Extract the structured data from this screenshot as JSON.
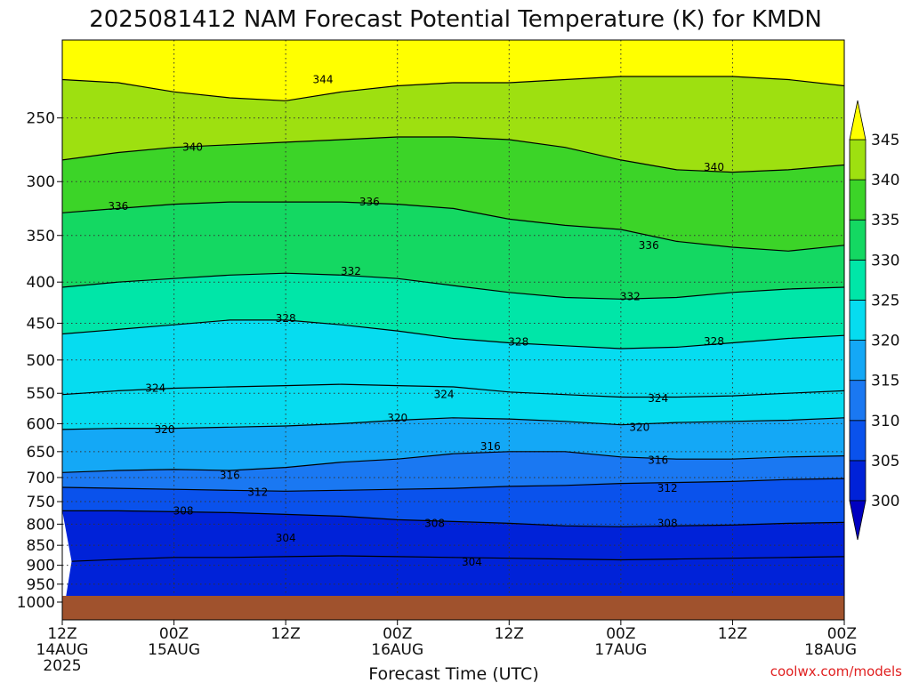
{
  "chart_data": {
    "type": "heatmap",
    "title": "2025081412 NAM Forecast Potential Temperature (K) for KMDN",
    "xlabel": "Forecast Time (UTC)",
    "ylabel": "",
    "y_axis": {
      "scale": "log-pressure",
      "range_hPa": [
        1000,
        200
      ],
      "ticks": [
        250,
        300,
        350,
        400,
        450,
        500,
        550,
        600,
        650,
        700,
        750,
        800,
        850,
        900,
        950,
        1000
      ]
    },
    "x_axis": {
      "range_hours": [
        0,
        84
      ],
      "ticks": [
        {
          "h": 0,
          "line1": "12Z",
          "line2": "14AUG",
          "line3": "2025"
        },
        {
          "h": 12,
          "line1": "00Z",
          "line2": "15AUG",
          "line3": ""
        },
        {
          "h": 24,
          "line1": "12Z",
          "line2": "",
          "line3": ""
        },
        {
          "h": 36,
          "line1": "00Z",
          "line2": "16AUG",
          "line3": ""
        },
        {
          "h": 48,
          "line1": "12Z",
          "line2": "",
          "line3": ""
        },
        {
          "h": 60,
          "line1": "00Z",
          "line2": "17AUG",
          "line3": ""
        },
        {
          "h": 72,
          "line1": "12Z",
          "line2": "",
          "line3": ""
        },
        {
          "h": 84,
          "line1": "00Z",
          "line2": "18AUG",
          "line3": ""
        }
      ]
    },
    "grid": "dotted",
    "colorbar": {
      "placement": "right",
      "levels": [
        300,
        305,
        310,
        315,
        320,
        325,
        330,
        335,
        340,
        345
      ],
      "colors": [
        "#0022d8",
        "#0a52ec",
        "#1a78f2",
        "#14a8f6",
        "#06dcf0",
        "#00e6a8",
        "#14d862",
        "#3cd428",
        "#9ee010",
        "#ffff18"
      ],
      "under_color": "#0000c0",
      "over_color": "#ffff00"
    },
    "surface_color": "#a0522d",
    "contours": [
      {
        "value": 304,
        "points": [
          [
            1,
            890
          ],
          [
            6,
            885
          ],
          [
            12,
            880
          ],
          [
            18,
            880
          ],
          [
            24,
            878
          ],
          [
            30,
            876
          ],
          [
            36,
            878
          ],
          [
            42,
            880
          ],
          [
            48,
            882
          ],
          [
            54,
            884
          ],
          [
            60,
            886
          ],
          [
            66,
            884
          ],
          [
            72,
            882
          ],
          [
            78,
            880
          ],
          [
            84,
            878
          ]
        ],
        "labels": [
          [
            24,
            832
          ],
          [
            44,
            892
          ]
        ]
      },
      {
        "value": 308,
        "points": [
          [
            0,
            770
          ],
          [
            6,
            770
          ],
          [
            12,
            772
          ],
          [
            18,
            774
          ],
          [
            24,
            778
          ],
          [
            30,
            782
          ],
          [
            36,
            790
          ],
          [
            42,
            794
          ],
          [
            48,
            798
          ],
          [
            54,
            804
          ],
          [
            60,
            806
          ],
          [
            66,
            804
          ],
          [
            72,
            802
          ],
          [
            78,
            798
          ],
          [
            84,
            796
          ]
        ],
        "labels": [
          [
            13,
            770
          ],
          [
            40,
            798
          ],
          [
            65,
            798
          ]
        ]
      },
      {
        "value": 312,
        "points": [
          [
            0,
            720
          ],
          [
            6,
            722
          ],
          [
            12,
            724
          ],
          [
            18,
            726
          ],
          [
            24,
            728
          ],
          [
            30,
            726
          ],
          [
            36,
            724
          ],
          [
            42,
            722
          ],
          [
            48,
            718
          ],
          [
            54,
            716
          ],
          [
            60,
            712
          ],
          [
            66,
            710
          ],
          [
            72,
            708
          ],
          [
            78,
            704
          ],
          [
            84,
            702
          ]
        ],
        "labels": [
          [
            21,
            730
          ],
          [
            65,
            722
          ]
        ]
      },
      {
        "value": 316,
        "points": [
          [
            0,
            690
          ],
          [
            6,
            686
          ],
          [
            12,
            684
          ],
          [
            18,
            686
          ],
          [
            24,
            680
          ],
          [
            30,
            670
          ],
          [
            36,
            664
          ],
          [
            42,
            654
          ],
          [
            48,
            650
          ],
          [
            54,
            650
          ],
          [
            60,
            660
          ],
          [
            66,
            664
          ],
          [
            72,
            664
          ],
          [
            78,
            660
          ],
          [
            84,
            658
          ]
        ],
        "labels": [
          [
            18,
            696
          ],
          [
            46,
            640
          ],
          [
            64,
            666
          ]
        ]
      },
      {
        "value": 320,
        "points": [
          [
            0,
            610
          ],
          [
            6,
            608
          ],
          [
            12,
            608
          ],
          [
            18,
            606
          ],
          [
            24,
            604
          ],
          [
            30,
            600
          ],
          [
            36,
            594
          ],
          [
            42,
            590
          ],
          [
            48,
            592
          ],
          [
            54,
            596
          ],
          [
            60,
            602
          ],
          [
            66,
            598
          ],
          [
            72,
            596
          ],
          [
            78,
            594
          ],
          [
            84,
            590
          ]
        ],
        "labels": [
          [
            11,
            610
          ],
          [
            36,
            590
          ],
          [
            62,
            606
          ]
        ]
      },
      {
        "value": 324,
        "points": [
          [
            0,
            552
          ],
          [
            6,
            546
          ],
          [
            12,
            542
          ],
          [
            18,
            540
          ],
          [
            24,
            538
          ],
          [
            30,
            536
          ],
          [
            36,
            538
          ],
          [
            42,
            540
          ],
          [
            48,
            548
          ],
          [
            54,
            552
          ],
          [
            60,
            556
          ],
          [
            66,
            556
          ],
          [
            72,
            554
          ],
          [
            78,
            550
          ],
          [
            84,
            546
          ]
        ],
        "labels": [
          [
            10,
            542
          ],
          [
            41,
            552
          ],
          [
            64,
            558
          ]
        ]
      },
      {
        "value": 328,
        "points": [
          [
            0,
            464
          ],
          [
            6,
            458
          ],
          [
            12,
            452
          ],
          [
            18,
            446
          ],
          [
            24,
            446
          ],
          [
            30,
            452
          ],
          [
            36,
            460
          ],
          [
            42,
            470
          ],
          [
            48,
            476
          ],
          [
            54,
            480
          ],
          [
            60,
            484
          ],
          [
            66,
            482
          ],
          [
            72,
            476
          ],
          [
            78,
            470
          ],
          [
            84,
            466
          ]
        ],
        "labels": [
          [
            24,
            444
          ],
          [
            49,
            475
          ],
          [
            70,
            474
          ]
        ]
      },
      {
        "value": 332,
        "points": [
          [
            0,
            406
          ],
          [
            6,
            400
          ],
          [
            12,
            396
          ],
          [
            18,
            392
          ],
          [
            24,
            390
          ],
          [
            30,
            392
          ],
          [
            36,
            396
          ],
          [
            42,
            404
          ],
          [
            48,
            412
          ],
          [
            54,
            418
          ],
          [
            60,
            420
          ],
          [
            66,
            418
          ],
          [
            72,
            412
          ],
          [
            78,
            408
          ],
          [
            84,
            406
          ]
        ],
        "labels": [
          [
            31,
            388
          ],
          [
            61,
            417
          ]
        ]
      },
      {
        "value": 336,
        "points": [
          [
            0,
            328
          ],
          [
            6,
            324
          ],
          [
            12,
            320
          ],
          [
            18,
            318
          ],
          [
            24,
            318
          ],
          [
            30,
            318
          ],
          [
            36,
            320
          ],
          [
            42,
            324
          ],
          [
            48,
            334
          ],
          [
            54,
            340
          ],
          [
            60,
            344
          ],
          [
            66,
            356
          ],
          [
            72,
            362
          ],
          [
            78,
            366
          ],
          [
            84,
            360
          ]
        ],
        "labels": [
          [
            6,
            322
          ],
          [
            33,
            318
          ],
          [
            63,
            360
          ]
        ]
      },
      {
        "value": 340,
        "points": [
          [
            0,
            282
          ],
          [
            6,
            276
          ],
          [
            12,
            272
          ],
          [
            18,
            270
          ],
          [
            24,
            268
          ],
          [
            30,
            266
          ],
          [
            36,
            264
          ],
          [
            42,
            264
          ],
          [
            48,
            266
          ],
          [
            54,
            272
          ],
          [
            60,
            282
          ],
          [
            66,
            290
          ],
          [
            72,
            292
          ],
          [
            78,
            290
          ],
          [
            84,
            286
          ]
        ],
        "labels": [
          [
            14,
            272
          ],
          [
            70,
            288
          ]
        ]
      },
      {
        "value": 344,
        "points": [
          [
            0,
            224
          ],
          [
            6,
            226
          ],
          [
            12,
            232
          ],
          [
            18,
            236
          ],
          [
            24,
            238
          ],
          [
            30,
            232
          ],
          [
            36,
            228
          ],
          [
            42,
            226
          ],
          [
            48,
            226
          ],
          [
            54,
            224
          ],
          [
            60,
            222
          ],
          [
            66,
            222
          ],
          [
            72,
            222
          ],
          [
            78,
            224
          ],
          [
            84,
            228
          ]
        ],
        "labels": [
          [
            28,
            224
          ]
        ]
      }
    ]
  },
  "credit": "coolwx.com/models"
}
